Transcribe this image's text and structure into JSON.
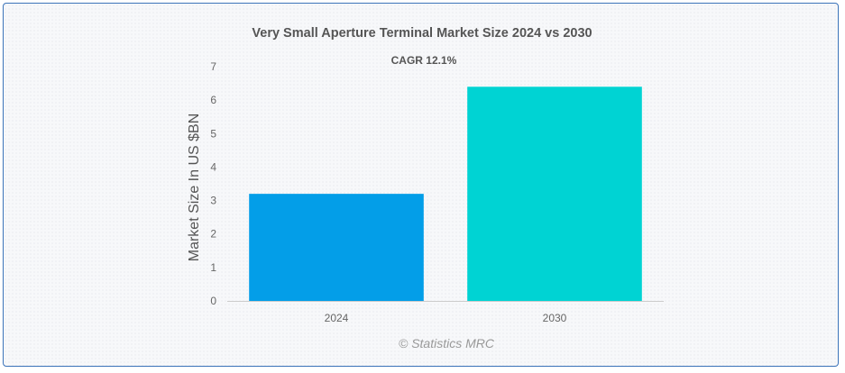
{
  "chart_data": {
    "type": "bar",
    "title": "Very Small Aperture Terminal Market Size 2024 vs 2030",
    "subtitle": "CAGR 12.1%",
    "categories": [
      "2024",
      "2030"
    ],
    "values": [
      3.2,
      6.4
    ],
    "colors": [
      "#039ee8",
      "#00d3d3"
    ],
    "xlabel": "",
    "ylabel": "Market Size In US $BN",
    "ylim": [
      0,
      7
    ],
    "yticks": [
      0,
      1,
      2,
      3,
      4,
      5,
      6,
      7
    ],
    "grid": false,
    "legend": "none",
    "credit": "© Statistics MRC"
  }
}
